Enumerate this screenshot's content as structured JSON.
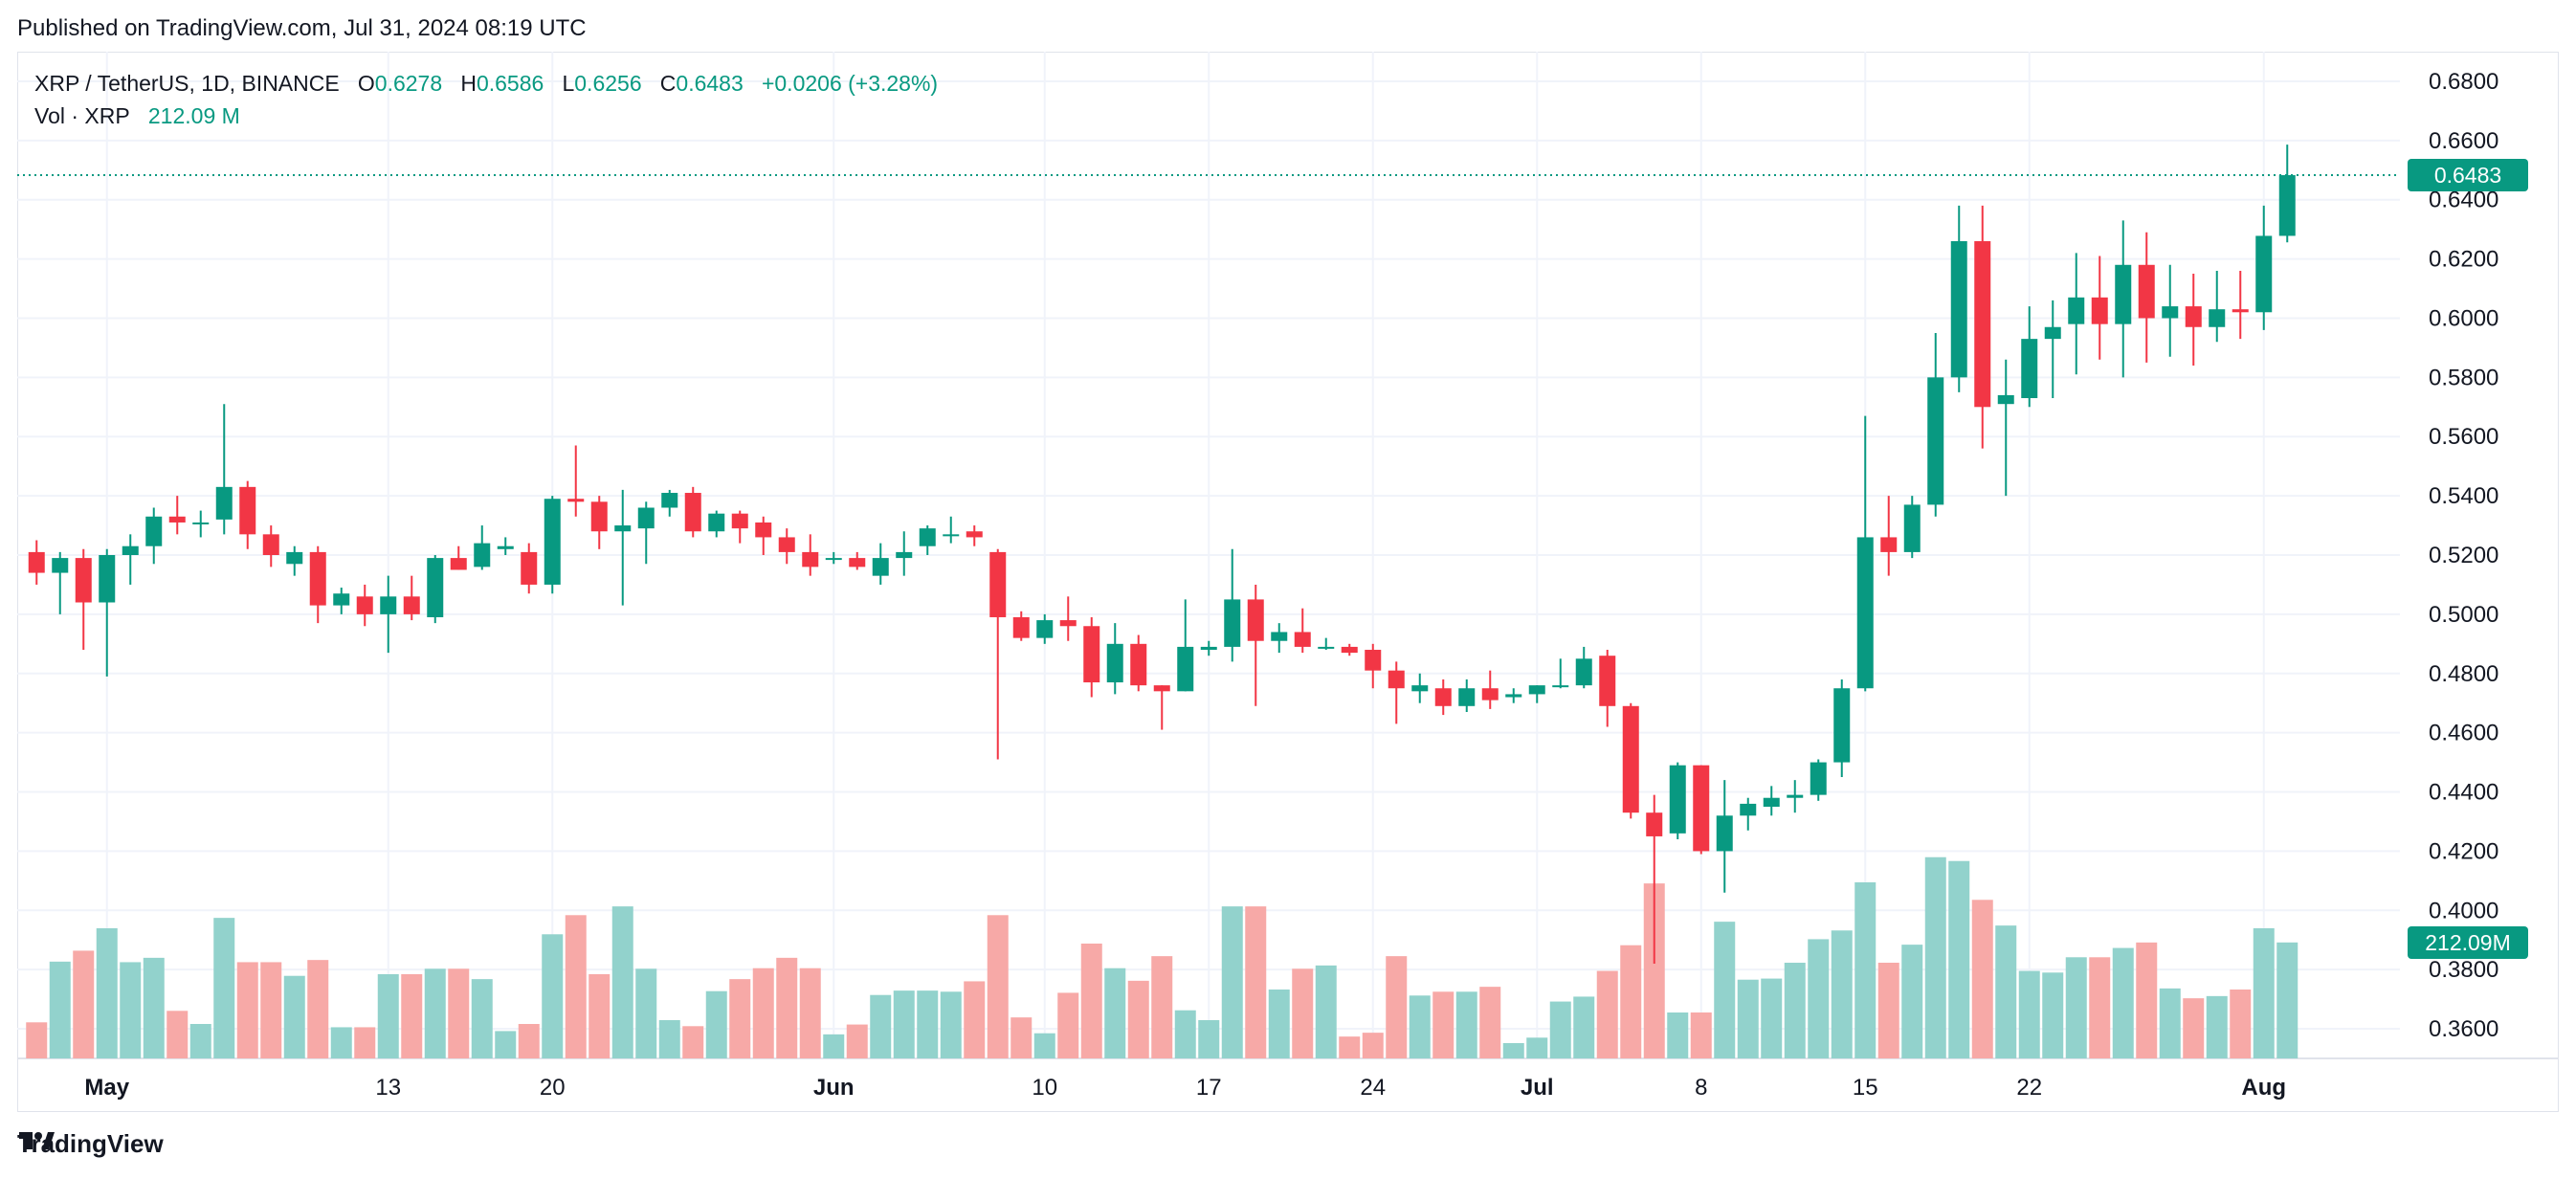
{
  "header": {
    "published_text": "Published on TradingView.com, Jul 31, 2024 08:19 UTC"
  },
  "legend": {
    "symbol": "XRP / TetherUS, 1D, BINANCE",
    "open_label": "O",
    "open_value": "0.6278",
    "high_label": "H",
    "high_value": "0.6586",
    "low_label": "L",
    "low_value": "0.6256",
    "close_label": "C",
    "close_value": "0.6483",
    "change": "+0.0206 (+3.28%)",
    "volume_label": "Vol · XRP",
    "volume_value": "212.09 M"
  },
  "price_tag": "0.6483",
  "volume_tag": "212.09M",
  "footer": {
    "brand": "TradingView"
  },
  "colors": {
    "up": "#089981",
    "down": "#f23645",
    "up_volume": "#92d2cc",
    "down_volume": "#f7a9a7",
    "grid": "#f0f3fa",
    "text": "#131722"
  },
  "chart_data": {
    "type": "candlestick",
    "symbol": "XRP / TetherUS",
    "interval": "1D",
    "exchange": "BINANCE",
    "start_date": "2024-04-28",
    "ylim": [
      0.35,
      0.69
    ],
    "y_ticks": [
      "0.6800",
      "0.6600",
      "0.6400",
      "0.6200",
      "0.6000",
      "0.5800",
      "0.5600",
      "0.5400",
      "0.5200",
      "0.5000",
      "0.4800",
      "0.4600",
      "0.4400",
      "0.4200",
      "0.4000",
      "0.3800",
      "0.3600"
    ],
    "x_ticks": [
      {
        "label": "May",
        "index": 3
      },
      {
        "label": "13",
        "index": 15
      },
      {
        "label": "20",
        "index": 22
      },
      {
        "label": "Jun",
        "index": 34
      },
      {
        "label": "10",
        "index": 43
      },
      {
        "label": "17",
        "index": 50
      },
      {
        "label": "24",
        "index": 57
      },
      {
        "label": "Jul",
        "index": 64
      },
      {
        "label": "8",
        "index": 71
      },
      {
        "label": "15",
        "index": 78
      },
      {
        "label": "22",
        "index": 85
      },
      {
        "label": "Aug",
        "index": 95
      }
    ],
    "volume_max_m": 420,
    "columns": [
      "open",
      "high",
      "low",
      "close",
      "volume_m"
    ],
    "candles": [
      [
        0.521,
        0.525,
        0.51,
        0.514,
        66
      ],
      [
        0.514,
        0.521,
        0.5,
        0.519,
        177
      ],
      [
        0.519,
        0.522,
        0.488,
        0.504,
        197
      ],
      [
        0.504,
        0.522,
        0.479,
        0.52,
        238
      ],
      [
        0.52,
        0.527,
        0.51,
        0.523,
        176
      ],
      [
        0.523,
        0.536,
        0.517,
        0.533,
        184
      ],
      [
        0.533,
        0.54,
        0.527,
        0.531,
        87
      ],
      [
        0.531,
        0.535,
        0.526,
        0.531,
        63
      ],
      [
        0.532,
        0.571,
        0.527,
        0.543,
        257
      ],
      [
        0.543,
        0.545,
        0.522,
        0.527,
        176
      ],
      [
        0.527,
        0.53,
        0.516,
        0.52,
        176
      ],
      [
        0.517,
        0.523,
        0.513,
        0.521,
        151
      ],
      [
        0.521,
        0.523,
        0.497,
        0.503,
        180
      ],
      [
        0.503,
        0.509,
        0.5,
        0.507,
        57
      ],
      [
        0.506,
        0.51,
        0.496,
        0.5,
        57
      ],
      [
        0.5,
        0.513,
        0.487,
        0.506,
        154
      ],
      [
        0.506,
        0.513,
        0.498,
        0.5,
        154
      ],
      [
        0.499,
        0.52,
        0.497,
        0.519,
        164
      ],
      [
        0.519,
        0.523,
        0.515,
        0.515,
        164
      ],
      [
        0.516,
        0.53,
        0.515,
        0.524,
        145
      ],
      [
        0.522,
        0.526,
        0.52,
        0.523,
        50
      ],
      [
        0.521,
        0.524,
        0.507,
        0.51,
        63
      ],
      [
        0.51,
        0.54,
        0.507,
        0.539,
        227
      ],
      [
        0.539,
        0.557,
        0.533,
        0.538,
        262
      ],
      [
        0.538,
        0.54,
        0.522,
        0.528,
        154
      ],
      [
        0.528,
        0.542,
        0.503,
        0.53,
        278
      ],
      [
        0.529,
        0.538,
        0.517,
        0.536,
        164
      ],
      [
        0.536,
        0.542,
        0.533,
        0.541,
        70
      ],
      [
        0.541,
        0.543,
        0.526,
        0.528,
        59
      ],
      [
        0.528,
        0.535,
        0.526,
        0.534,
        123
      ],
      [
        0.534,
        0.535,
        0.524,
        0.529,
        145
      ],
      [
        0.531,
        0.533,
        0.52,
        0.526,
        165
      ],
      [
        0.526,
        0.529,
        0.517,
        0.521,
        184
      ],
      [
        0.521,
        0.527,
        0.513,
        0.516,
        165
      ],
      [
        0.519,
        0.521,
        0.517,
        0.519,
        44
      ],
      [
        0.519,
        0.521,
        0.515,
        0.516,
        62
      ],
      [
        0.513,
        0.524,
        0.51,
        0.519,
        116
      ],
      [
        0.519,
        0.528,
        0.513,
        0.521,
        124
      ],
      [
        0.523,
        0.53,
        0.52,
        0.529,
        124
      ],
      [
        0.527,
        0.533,
        0.524,
        0.527,
        122
      ],
      [
        0.528,
        0.53,
        0.523,
        0.526,
        141
      ],
      [
        0.521,
        0.522,
        0.451,
        0.499,
        262
      ],
      [
        0.499,
        0.501,
        0.491,
        0.492,
        75
      ],
      [
        0.492,
        0.5,
        0.49,
        0.498,
        46
      ],
      [
        0.498,
        0.506,
        0.491,
        0.496,
        120
      ],
      [
        0.496,
        0.499,
        0.472,
        0.477,
        210
      ],
      [
        0.477,
        0.497,
        0.473,
        0.49,
        165
      ],
      [
        0.49,
        0.493,
        0.474,
        0.476,
        142
      ],
      [
        0.476,
        0.476,
        0.461,
        0.474,
        187
      ],
      [
        0.474,
        0.505,
        0.474,
        0.489,
        88
      ],
      [
        0.488,
        0.491,
        0.486,
        0.489,
        70
      ],
      [
        0.489,
        0.522,
        0.484,
        0.505,
        278
      ],
      [
        0.505,
        0.51,
        0.469,
        0.491,
        278
      ],
      [
        0.491,
        0.497,
        0.487,
        0.494,
        126
      ],
      [
        0.494,
        0.502,
        0.487,
        0.489,
        164
      ],
      [
        0.489,
        0.492,
        0.488,
        0.489,
        170
      ],
      [
        0.489,
        0.49,
        0.486,
        0.487,
        40
      ],
      [
        0.488,
        0.49,
        0.475,
        0.481,
        47
      ],
      [
        0.481,
        0.484,
        0.463,
        0.475,
        187
      ],
      [
        0.474,
        0.48,
        0.47,
        0.476,
        115
      ],
      [
        0.475,
        0.478,
        0.466,
        0.469,
        122
      ],
      [
        0.469,
        0.478,
        0.467,
        0.475,
        122
      ],
      [
        0.475,
        0.481,
        0.468,
        0.471,
        131
      ],
      [
        0.472,
        0.475,
        0.47,
        0.473,
        28
      ],
      [
        0.473,
        0.476,
        0.47,
        0.476,
        38
      ],
      [
        0.476,
        0.485,
        0.475,
        0.476,
        104
      ],
      [
        0.476,
        0.489,
        0.475,
        0.485,
        113
      ],
      [
        0.486,
        0.488,
        0.462,
        0.469,
        160
      ],
      [
        0.469,
        0.47,
        0.431,
        0.433,
        207
      ],
      [
        0.433,
        0.439,
        0.382,
        0.425,
        320
      ],
      [
        0.426,
        0.45,
        0.424,
        0.449,
        84
      ],
      [
        0.449,
        0.449,
        0.419,
        0.42,
        84
      ],
      [
        0.42,
        0.444,
        0.406,
        0.432,
        250
      ],
      [
        0.432,
        0.438,
        0.427,
        0.436,
        144
      ],
      [
        0.435,
        0.442,
        0.432,
        0.438,
        146
      ],
      [
        0.438,
        0.444,
        0.433,
        0.439,
        175
      ],
      [
        0.439,
        0.451,
        0.437,
        0.45,
        218
      ],
      [
        0.45,
        0.478,
        0.445,
        0.475,
        234
      ],
      [
        0.475,
        0.567,
        0.474,
        0.526,
        322
      ],
      [
        0.526,
        0.54,
        0.513,
        0.521,
        175
      ],
      [
        0.521,
        0.54,
        0.519,
        0.537,
        208
      ],
      [
        0.537,
        0.595,
        0.533,
        0.58,
        368
      ],
      [
        0.58,
        0.638,
        0.575,
        0.626,
        361
      ],
      [
        0.626,
        0.638,
        0.556,
        0.57,
        290
      ],
      [
        0.571,
        0.586,
        0.54,
        0.574,
        243
      ],
      [
        0.573,
        0.604,
        0.57,
        0.593,
        160
      ],
      [
        0.593,
        0.606,
        0.573,
        0.597,
        157
      ],
      [
        0.598,
        0.622,
        0.581,
        0.607,
        185
      ],
      [
        0.607,
        0.621,
        0.586,
        0.598,
        185
      ],
      [
        0.598,
        0.633,
        0.58,
        0.618,
        202
      ],
      [
        0.618,
        0.629,
        0.585,
        0.6,
        212
      ],
      [
        0.6,
        0.618,
        0.587,
        0.604,
        128
      ],
      [
        0.604,
        0.615,
        0.584,
        0.597,
        110
      ],
      [
        0.597,
        0.616,
        0.592,
        0.603,
        114
      ],
      [
        0.603,
        0.616,
        0.593,
        0.602,
        126
      ],
      [
        0.602,
        0.638,
        0.596,
        0.6278,
        238
      ],
      [
        0.6278,
        0.6586,
        0.6256,
        0.6483,
        212.09
      ]
    ]
  }
}
